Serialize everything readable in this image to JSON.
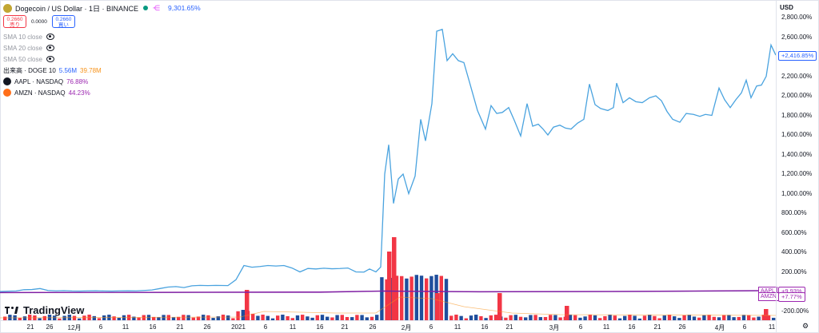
{
  "legend": {
    "title": "Dogecoin / US Dollar · 1日 · BINANCE",
    "change": "9,301.65%",
    "sell": {
      "price": "0.2660",
      "label": "売り"
    },
    "spread": "0.0000",
    "buy": {
      "price": "0.2660",
      "label": "買い"
    },
    "indicators": [
      "SMA 10 close",
      "SMA 20 close",
      "SMA 50 close"
    ],
    "volume": {
      "label": "出来高 · DOGE 10",
      "v1": "5.56M",
      "v2": "39.78M"
    },
    "compare": [
      {
        "label": "AAPL · NASDAQ",
        "value": "76.88%"
      },
      {
        "label": "AMZN · NASDAQ",
        "value": "44.23%"
      }
    ]
  },
  "watermark": "TradingView",
  "axis": {
    "currency": "USD",
    "ylabels": [
      "2,800.00%",
      "2,600.00%",
      "2,400.00%",
      "2,200.00%",
      "2,000.00%",
      "1,800.00%",
      "1,600.00%",
      "1,400.00%",
      "1,200.00%",
      "1,000.00%",
      "800.00%",
      "600.00%",
      "400.00%",
      "200.00%",
      "-200.00%"
    ],
    "ylabel_values": [
      2800,
      2600,
      2400,
      2200,
      2000,
      1800,
      1600,
      1400,
      1200,
      1000,
      800,
      600,
      400,
      200,
      -200
    ],
    "xlabels": [
      "21",
      "26",
      "12月",
      "6",
      "11",
      "16",
      "21",
      "26",
      "2021",
      "6",
      "11",
      "16",
      "21",
      "26",
      "2月",
      "6",
      "11",
      "16",
      "21",
      "3月",
      "6",
      "11",
      "16",
      "21",
      "26",
      "4月",
      "6",
      "11"
    ],
    "xlabel_pos": [
      38,
      62,
      93,
      126,
      157,
      191,
      225,
      259,
      298,
      332,
      366,
      400,
      431,
      466,
      508,
      539,
      572,
      606,
      637,
      693,
      726,
      758,
      790,
      822,
      853,
      900,
      931,
      965
    ]
  },
  "tags": {
    "price": "+2,416.85%",
    "aapl_name": "AAPL",
    "aapl": "+9.93%",
    "amzn_name": "AMZN",
    "amzn": "+7.77%"
  },
  "colors": {
    "line": "#4aa3df",
    "compare": "#9c27b0",
    "vol_up": "#f23645",
    "vol_down": "#1f4e9c",
    "vol_ma": "#f7931a"
  },
  "chart_data": {
    "type": "line",
    "price_series": [
      {
        "x": 0,
        "y": 0
      },
      {
        "x": 10,
        "y": 3
      },
      {
        "x": 20,
        "y": 5
      },
      {
        "x": 30,
        "y": 18
      },
      {
        "x": 40,
        "y": 20
      },
      {
        "x": 50,
        "y": 30
      },
      {
        "x": 60,
        "y": 10
      },
      {
        "x": 70,
        "y": 6
      },
      {
        "x": 80,
        "y": 8
      },
      {
        "x": 90,
        "y": 5
      },
      {
        "x": 100,
        "y": 4
      },
      {
        "x": 110,
        "y": 6
      },
      {
        "x": 120,
        "y": 7
      },
      {
        "x": 130,
        "y": 5
      },
      {
        "x": 140,
        "y": 4
      },
      {
        "x": 150,
        "y": 6
      },
      {
        "x": 160,
        "y": 7
      },
      {
        "x": 170,
        "y": 6
      },
      {
        "x": 180,
        "y": 10
      },
      {
        "x": 190,
        "y": 15
      },
      {
        "x": 200,
        "y": 30
      },
      {
        "x": 210,
        "y": 45
      },
      {
        "x": 220,
        "y": 50
      },
      {
        "x": 230,
        "y": 40
      },
      {
        "x": 240,
        "y": 58
      },
      {
        "x": 250,
        "y": 62
      },
      {
        "x": 260,
        "y": 60
      },
      {
        "x": 270,
        "y": 62
      },
      {
        "x": 285,
        "y": 60
      },
      {
        "x": 295,
        "y": 120
      },
      {
        "x": 305,
        "y": 265
      },
      {
        "x": 315,
        "y": 248
      },
      {
        "x": 325,
        "y": 255
      },
      {
        "x": 335,
        "y": 265
      },
      {
        "x": 345,
        "y": 260
      },
      {
        "x": 355,
        "y": 265
      },
      {
        "x": 365,
        "y": 240
      },
      {
        "x": 375,
        "y": 200
      },
      {
        "x": 385,
        "y": 235
      },
      {
        "x": 395,
        "y": 230
      },
      {
        "x": 405,
        "y": 238
      },
      {
        "x": 415,
        "y": 232
      },
      {
        "x": 425,
        "y": 235
      },
      {
        "x": 435,
        "y": 240
      },
      {
        "x": 445,
        "y": 200
      },
      {
        "x": 455,
        "y": 198
      },
      {
        "x": 462,
        "y": 230
      },
      {
        "x": 470,
        "y": 200
      },
      {
        "x": 476,
        "y": 250
      },
      {
        "x": 481,
        "y": 1200
      },
      {
        "x": 486,
        "y": 1500
      },
      {
        "x": 492,
        "y": 900
      },
      {
        "x": 498,
        "y": 1150
      },
      {
        "x": 504,
        "y": 1200
      },
      {
        "x": 511,
        "y": 1000
      },
      {
        "x": 519,
        "y": 1180
      },
      {
        "x": 526,
        "y": 1760
      },
      {
        "x": 532,
        "y": 1540
      },
      {
        "x": 540,
        "y": 1920
      },
      {
        "x": 546,
        "y": 2660
      },
      {
        "x": 553,
        "y": 2680
      },
      {
        "x": 559,
        "y": 2360
      },
      {
        "x": 566,
        "y": 2430
      },
      {
        "x": 573,
        "y": 2360
      },
      {
        "x": 580,
        "y": 2340
      },
      {
        "x": 587,
        "y": 2140
      },
      {
        "x": 597,
        "y": 1850
      },
      {
        "x": 607,
        "y": 1660
      },
      {
        "x": 614,
        "y": 1900
      },
      {
        "x": 621,
        "y": 1820
      },
      {
        "x": 628,
        "y": 1830
      },
      {
        "x": 636,
        "y": 1880
      },
      {
        "x": 643,
        "y": 1750
      },
      {
        "x": 651,
        "y": 1590
      },
      {
        "x": 659,
        "y": 1920
      },
      {
        "x": 666,
        "y": 1690
      },
      {
        "x": 673,
        "y": 1710
      },
      {
        "x": 679,
        "y": 1660
      },
      {
        "x": 685,
        "y": 1600
      },
      {
        "x": 692,
        "y": 1680
      },
      {
        "x": 700,
        "y": 1700
      },
      {
        "x": 707,
        "y": 1670
      },
      {
        "x": 714,
        "y": 1660
      },
      {
        "x": 722,
        "y": 1720
      },
      {
        "x": 730,
        "y": 1760
      },
      {
        "x": 737,
        "y": 2120
      },
      {
        "x": 744,
        "y": 1910
      },
      {
        "x": 751,
        "y": 1870
      },
      {
        "x": 760,
        "y": 1850
      },
      {
        "x": 767,
        "y": 1880
      },
      {
        "x": 771,
        "y": 2130
      },
      {
        "x": 779,
        "y": 1930
      },
      {
        "x": 787,
        "y": 1980
      },
      {
        "x": 795,
        "y": 1940
      },
      {
        "x": 803,
        "y": 1930
      },
      {
        "x": 812,
        "y": 1980
      },
      {
        "x": 820,
        "y": 2000
      },
      {
        "x": 827,
        "y": 1950
      },
      {
        "x": 834,
        "y": 1840
      },
      {
        "x": 841,
        "y": 1760
      },
      {
        "x": 850,
        "y": 1730
      },
      {
        "x": 858,
        "y": 1820
      },
      {
        "x": 867,
        "y": 1810
      },
      {
        "x": 875,
        "y": 1790
      },
      {
        "x": 882,
        "y": 1810
      },
      {
        "x": 890,
        "y": 1800
      },
      {
        "x": 899,
        "y": 2080
      },
      {
        "x": 906,
        "y": 1960
      },
      {
        "x": 913,
        "y": 1880
      },
      {
        "x": 920,
        "y": 1960
      },
      {
        "x": 927,
        "y": 2030
      },
      {
        "x": 933,
        "y": 2160
      },
      {
        "x": 939,
        "y": 1980
      },
      {
        "x": 946,
        "y": 2100
      },
      {
        "x": 952,
        "y": 2110
      },
      {
        "x": 958,
        "y": 2200
      },
      {
        "x": 964,
        "y": 2520
      },
      {
        "x": 970,
        "y": 2416
      }
    ],
    "aapl_series": [
      {
        "x": 0,
        "y": -10
      },
      {
        "x": 200,
        "y": -8
      },
      {
        "x": 400,
        "y": -5
      },
      {
        "x": 480,
        "y": 5
      },
      {
        "x": 600,
        "y": -2
      },
      {
        "x": 800,
        "y": 2
      },
      {
        "x": 970,
        "y": 10
      }
    ],
    "amzn_series": [
      {
        "x": 0,
        "y": -12
      },
      {
        "x": 200,
        "y": -10
      },
      {
        "x": 400,
        "y": -8
      },
      {
        "x": 480,
        "y": 4
      },
      {
        "x": 600,
        "y": -4
      },
      {
        "x": 800,
        "y": 0
      },
      {
        "x": 970,
        "y": 8
      }
    ],
    "volume_up": [
      306,
      484,
      490,
      544,
      622,
      706,
      955
    ],
    "volume_up_h": [
      38,
      86,
      104,
      34,
      34,
      18,
      14
    ],
    "ylim": [
      -250,
      2950
    ]
  }
}
